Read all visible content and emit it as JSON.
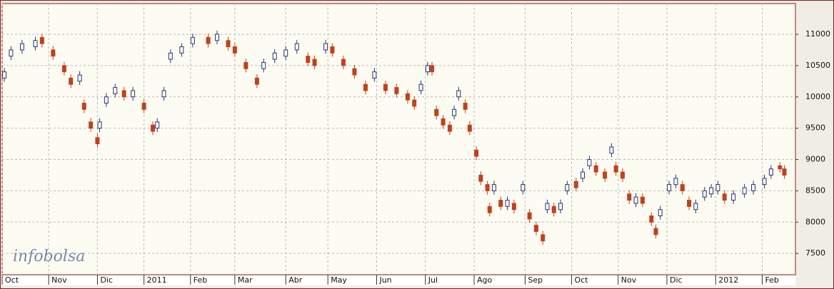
{
  "chart_data": {
    "type": "candlestick",
    "watermark": "infobolsa",
    "up_color": "#27357a",
    "down_color": "#c2411b",
    "grid": true,
    "xlim": [
      0,
      358
    ],
    "ylim": [
      7160,
      11490
    ],
    "yticks": [
      7500,
      8000,
      8500,
      9000,
      9500,
      10000,
      10500,
      11000
    ],
    "xticks": [
      {
        "value": 0,
        "label": "Oct"
      },
      {
        "value": 21,
        "label": "Nov"
      },
      {
        "value": 43,
        "label": "Dic"
      },
      {
        "value": 64,
        "label": "2011"
      },
      {
        "value": 85,
        "label": "Feb"
      },
      {
        "value": 105,
        "label": "Mar"
      },
      {
        "value": 128,
        "label": "Abr"
      },
      {
        "value": 147,
        "label": "May"
      },
      {
        "value": 169,
        "label": "Jun"
      },
      {
        "value": 191,
        "label": "Jul"
      },
      {
        "value": 213,
        "label": "Ago"
      },
      {
        "value": 236,
        "label": "Sep"
      },
      {
        "value": 257,
        "label": "Oct"
      },
      {
        "value": 278,
        "label": "Nov"
      },
      {
        "value": 300,
        "label": "Dic"
      },
      {
        "value": 322,
        "label": "2012"
      },
      {
        "value": 343,
        "label": "Feb"
      }
    ],
    "x": [
      1,
      4,
      9,
      15,
      18,
      23,
      28,
      31,
      35,
      37,
      40,
      43,
      44,
      47,
      51,
      55,
      59,
      64,
      68,
      70,
      73,
      76,
      81,
      86,
      93,
      97,
      102,
      105,
      110,
      115,
      118,
      123,
      128,
      133,
      138,
      141,
      146,
      149,
      154,
      159,
      164,
      168,
      173,
      178,
      183,
      186,
      189,
      192,
      194,
      196,
      199,
      202,
      204,
      206,
      209,
      211,
      214,
      216,
      219,
      220,
      222,
      225,
      228,
      231,
      235,
      238,
      241,
      244,
      246,
      249,
      252,
      255,
      259,
      262,
      265,
      268,
      272,
      275,
      277,
      280,
      283,
      286,
      289,
      293,
      295,
      297,
      301,
      304,
      307,
      310,
      313,
      317,
      320,
      323,
      326,
      330,
      335,
      339,
      344,
      347,
      351,
      353
    ],
    "open": [
      10300,
      10650,
      10750,
      10800,
      10950,
      10750,
      10500,
      10300,
      10250,
      9900,
      9600,
      9350,
      9500,
      9900,
      10050,
      10100,
      10000,
      9900,
      9550,
      9500,
      10000,
      10600,
      10700,
      10850,
      10950,
      10900,
      10900,
      10800,
      10550,
      10300,
      10450,
      10600,
      10650,
      10750,
      10650,
      10600,
      10750,
      10800,
      10600,
      10450,
      10200,
      10300,
      10200,
      10150,
      10050,
      9950,
      10100,
      10400,
      10500,
      9800,
      9650,
      9550,
      9700,
      10000,
      9900,
      9550,
      9150,
      8750,
      8600,
      8250,
      8500,
      8350,
      8250,
      8300,
      8500,
      8150,
      7950,
      7800,
      8200,
      8250,
      8200,
      8500,
      8650,
      8700,
      8900,
      8900,
      8800,
      9100,
      8900,
      8800,
      8450,
      8300,
      8400,
      8100,
      7900,
      8100,
      8500,
      8600,
      8600,
      8350,
      8200,
      8400,
      8450,
      8500,
      8450,
      8350,
      8450,
      8500,
      8600,
      8750,
      8900,
      8850
    ],
    "high": [
      10460,
      10810,
      10910,
      10960,
      11010,
      10810,
      10560,
      10360,
      10410,
      9960,
      9660,
      9410,
      9660,
      10060,
      10210,
      10160,
      10160,
      9960,
      9610,
      9660,
      10160,
      10760,
      10860,
      11010,
      11010,
      11060,
      10960,
      10860,
      10610,
      10360,
      10610,
      10760,
      10810,
      10910,
      10710,
      10660,
      10910,
      10860,
      10660,
      10510,
      10260,
      10460,
      10260,
      10210,
      10110,
      10010,
      10260,
      10560,
      10560,
      9860,
      9710,
      9610,
      9860,
      10160,
      9960,
      9610,
      9210,
      8810,
      8660,
      8310,
      8660,
      8410,
      8410,
      8360,
      8660,
      8210,
      8010,
      7860,
      8360,
      8310,
      8360,
      8660,
      8710,
      8860,
      9060,
      8960,
      8860,
      9260,
      8960,
      8860,
      8510,
      8460,
      8460,
      8160,
      7960,
      8260,
      8660,
      8760,
      8660,
      8410,
      8360,
      8560,
      8610,
      8660,
      8510,
      8510,
      8610,
      8660,
      8760,
      8910,
      8960,
      8910
    ],
    "low": [
      10240,
      10590,
      10690,
      10740,
      10790,
      10590,
      10340,
      10140,
      10190,
      9740,
      9440,
      9190,
      9440,
      9840,
      9990,
      9940,
      9940,
      9740,
      9390,
      9440,
      9940,
      10540,
      10640,
      10790,
      10790,
      10840,
      10740,
      10640,
      10390,
      10140,
      10390,
      10540,
      10590,
      10690,
      10490,
      10440,
      10690,
      10640,
      10440,
      10290,
      10040,
      10240,
      10040,
      9990,
      9890,
      9790,
      10040,
      10340,
      10340,
      9640,
      9490,
      9390,
      9640,
      9940,
      9740,
      9390,
      8990,
      8590,
      8440,
      8090,
      8440,
      8190,
      8190,
      8140,
      8440,
      7990,
      7790,
      7640,
      8140,
      8090,
      8140,
      8440,
      8490,
      8640,
      8840,
      8740,
      8640,
      9040,
      8740,
      8640,
      8290,
      8240,
      8240,
      7940,
      7740,
      8040,
      8440,
      8540,
      8440,
      8190,
      8140,
      8340,
      8390,
      8440,
      8290,
      8290,
      8390,
      8440,
      8540,
      8690,
      8790,
      8690
    ],
    "close": [
      10400,
      10750,
      10850,
      10900,
      10850,
      10650,
      10400,
      10200,
      10350,
      9800,
      9500,
      9250,
      9600,
      10000,
      10150,
      10000,
      10100,
      9800,
      9450,
      9600,
      10100,
      10700,
      10800,
      10950,
      10850,
      11000,
      10800,
      10700,
      10450,
      10200,
      10550,
      10700,
      10750,
      10850,
      10550,
      10500,
      10850,
      10700,
      10500,
      10350,
      10100,
      10400,
      10100,
      10050,
      9950,
      9850,
      10200,
      10500,
      10400,
      9700,
      9550,
      9450,
      9800,
      10100,
      9800,
      9450,
      9050,
      8650,
      8500,
      8150,
      8600,
      8250,
      8350,
      8200,
      8600,
      8050,
      7850,
      7700,
      8300,
      8150,
      8300,
      8600,
      8550,
      8800,
      9000,
      8800,
      8700,
      9200,
      8800,
      8700,
      8350,
      8400,
      8300,
      8000,
      7800,
      8200,
      8600,
      8700,
      8500,
      8250,
      8300,
      8500,
      8550,
      8600,
      8350,
      8450,
      8550,
      8600,
      8700,
      8850,
      8850,
      8750
    ]
  }
}
